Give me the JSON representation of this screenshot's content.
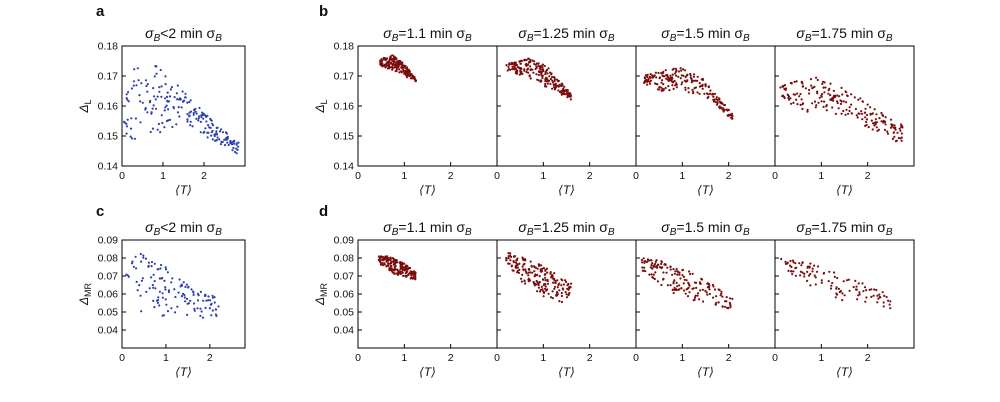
{
  "panel_letters": {
    "a": "a",
    "b": "b",
    "c": "c",
    "d": "d"
  },
  "colors": {
    "blue": "#2b3fae",
    "darkred": "#7a0d0d",
    "axis": "#000000"
  },
  "labels": {
    "x_axis": "⟨T⟩",
    "y_axis_L_symbol": "Δ",
    "y_axis_L_sub": "L",
    "y_axis_MR_symbol": "Δ",
    "y_axis_MR_sub": "MR",
    "title_lt2": {
      "pre": "σ",
      "sub": "B",
      "mid": "<2 min σ",
      "sub2": "B"
    },
    "title_1_1": {
      "pre": "σ",
      "sub": "B",
      "mid": "=1.1 min σ",
      "sub2": "B"
    },
    "title_1_25": {
      "pre": "σ",
      "sub": "B",
      "mid": "=1.25 min σ",
      "sub2": "B"
    },
    "title_1_5": {
      "pre": "σ",
      "sub": "B",
      "mid": "=1.5 min σ",
      "sub2": "B"
    },
    "title_1_75": {
      "pre": "σ",
      "sub": "B",
      "mid": "=1.75 min σ",
      "sub2": "B"
    }
  },
  "chart_data": [
    {
      "type": "scatter",
      "id": "a",
      "title_key": "title_lt2",
      "y_key": "L",
      "color_key": "blue",
      "xlim": [
        0,
        3
      ],
      "ylim": [
        0.14,
        0.18
      ],
      "xticks": [
        0,
        1,
        2
      ],
      "yticks": [
        0.14,
        0.15,
        0.16,
        0.17,
        0.18
      ],
      "gen": {
        "type": "region",
        "n": 210,
        "x": [
          0.05,
          2.85
        ],
        "top": [
          [
            0.05,
            0.168
          ],
          [
            0.5,
            0.176
          ],
          [
            1.0,
            0.172
          ],
          [
            1.5,
            0.165
          ],
          [
            2.0,
            0.158
          ],
          [
            2.8,
            0.148
          ]
        ],
        "bot": [
          [
            0.05,
            0.15
          ],
          [
            0.5,
            0.148
          ],
          [
            1.0,
            0.15
          ],
          [
            1.5,
            0.154
          ],
          [
            2.0,
            0.15
          ],
          [
            2.8,
            0.144
          ]
        ],
        "seed": 11
      }
    },
    {
      "type": "scatter",
      "id": "b1",
      "title_key": "title_1_1",
      "y_key": "L",
      "color_key": "darkred",
      "xlim": [
        0,
        3
      ],
      "ylim": [
        0.14,
        0.18
      ],
      "xticks": [
        0,
        1,
        2
      ],
      "yticks": [
        0.14,
        0.15,
        0.16,
        0.17,
        0.18
      ],
      "gen": {
        "type": "region",
        "n": 200,
        "x": [
          0.48,
          1.25
        ],
        "top": [
          [
            0.48,
            0.176
          ],
          [
            0.75,
            0.177
          ],
          [
            1.0,
            0.174
          ],
          [
            1.25,
            0.169
          ]
        ],
        "bot": [
          [
            0.48,
            0.173
          ],
          [
            0.75,
            0.172
          ],
          [
            1.0,
            0.17
          ],
          [
            1.25,
            0.168
          ]
        ],
        "seed": 21
      }
    },
    {
      "type": "scatter",
      "id": "b2",
      "title_key": "title_1_25",
      "y_key": "L",
      "color_key": "darkred",
      "xlim": [
        0,
        3
      ],
      "ylim": [
        0.14,
        0.18
      ],
      "xticks": [
        0,
        1,
        2
      ],
      "yticks": [
        0.14,
        0.15,
        0.16,
        0.17,
        0.18
      ],
      "gen": {
        "type": "region",
        "n": 220,
        "x": [
          0.2,
          1.6
        ],
        "top": [
          [
            0.2,
            0.174
          ],
          [
            0.7,
            0.176
          ],
          [
            1.1,
            0.173
          ],
          [
            1.6,
            0.164
          ]
        ],
        "bot": [
          [
            0.2,
            0.172
          ],
          [
            0.7,
            0.169
          ],
          [
            1.1,
            0.166
          ],
          [
            1.6,
            0.162
          ]
        ],
        "seed": 31
      }
    },
    {
      "type": "scatter",
      "id": "b3",
      "title_key": "title_1_5",
      "y_key": "L",
      "color_key": "darkred",
      "xlim": [
        0,
        3
      ],
      "ylim": [
        0.14,
        0.18
      ],
      "xticks": [
        0,
        1,
        2
      ],
      "yticks": [
        0.14,
        0.15,
        0.16,
        0.17,
        0.18
      ],
      "gen": {
        "type": "region",
        "n": 210,
        "x": [
          0.15,
          2.1
        ],
        "top": [
          [
            0.15,
            0.17
          ],
          [
            0.9,
            0.173
          ],
          [
            1.4,
            0.17
          ],
          [
            2.1,
            0.157
          ]
        ],
        "bot": [
          [
            0.15,
            0.167
          ],
          [
            0.7,
            0.164
          ],
          [
            1.4,
            0.164
          ],
          [
            2.1,
            0.155
          ]
        ],
        "seed": 41
      }
    },
    {
      "type": "scatter",
      "id": "b4",
      "title_key": "title_1_75",
      "y_key": "L",
      "color_key": "darkred",
      "xlim": [
        0,
        3
      ],
      "ylim": [
        0.14,
        0.18
      ],
      "xticks": [
        0,
        1,
        2
      ],
      "yticks": [
        0.14,
        0.15,
        0.16,
        0.17,
        0.18
      ],
      "gen": {
        "type": "region",
        "n": 210,
        "x": [
          0.1,
          2.75
        ],
        "top": [
          [
            0.1,
            0.167
          ],
          [
            0.8,
            0.17
          ],
          [
            1.5,
            0.166
          ],
          [
            2.1,
            0.16
          ],
          [
            2.75,
            0.154
          ]
        ],
        "bot": [
          [
            0.1,
            0.162
          ],
          [
            0.7,
            0.158
          ],
          [
            1.5,
            0.157
          ],
          [
            2.1,
            0.152
          ],
          [
            2.75,
            0.147
          ]
        ],
        "seed": 51
      }
    },
    {
      "type": "scatter",
      "id": "c",
      "title_key": "title_lt2",
      "y_key": "MR",
      "color_key": "blue",
      "xlim": [
        0,
        2.8
      ],
      "ylim": [
        0.03,
        0.09
      ],
      "xticks": [
        0,
        1,
        2
      ],
      "yticks": [
        0.04,
        0.05,
        0.06,
        0.07,
        0.08,
        0.09
      ],
      "gen": {
        "type": "region",
        "n": 130,
        "x": [
          0.05,
          2.2
        ],
        "top": [
          [
            0.05,
            0.081
          ],
          [
            0.5,
            0.083
          ],
          [
            1.0,
            0.075
          ],
          [
            1.5,
            0.066
          ],
          [
            2.2,
            0.058
          ]
        ],
        "bot": [
          [
            0.05,
            0.07
          ],
          [
            0.5,
            0.045
          ],
          [
            1.0,
            0.045
          ],
          [
            1.5,
            0.048
          ],
          [
            2.2,
            0.045
          ]
        ],
        "seed": 61
      }
    },
    {
      "type": "scatter",
      "id": "d1",
      "title_key": "title_1_1",
      "y_key": "MR",
      "color_key": "darkred",
      "xlim": [
        0,
        3
      ],
      "ylim": [
        0.03,
        0.09
      ],
      "xticks": [
        0,
        1,
        2
      ],
      "yticks": [
        0.04,
        0.05,
        0.06,
        0.07,
        0.08,
        0.09
      ],
      "gen": {
        "type": "region",
        "n": 190,
        "x": [
          0.45,
          1.25
        ],
        "top": [
          [
            0.45,
            0.082
          ],
          [
            0.7,
            0.081
          ],
          [
            1.0,
            0.077
          ],
          [
            1.25,
            0.072
          ]
        ],
        "bot": [
          [
            0.45,
            0.077
          ],
          [
            0.7,
            0.072
          ],
          [
            1.0,
            0.069
          ],
          [
            1.25,
            0.068
          ]
        ],
        "seed": 71
      }
    },
    {
      "type": "scatter",
      "id": "d2",
      "title_key": "title_1_25",
      "y_key": "MR",
      "color_key": "darkred",
      "xlim": [
        0,
        3
      ],
      "ylim": [
        0.03,
        0.09
      ],
      "xticks": [
        0,
        1,
        2
      ],
      "yticks": [
        0.04,
        0.05,
        0.06,
        0.07,
        0.08,
        0.09
      ],
      "gen": {
        "type": "region",
        "n": 190,
        "x": [
          0.2,
          1.6
        ],
        "top": [
          [
            0.2,
            0.083
          ],
          [
            0.6,
            0.081
          ],
          [
            1.1,
            0.074
          ],
          [
            1.6,
            0.066
          ]
        ],
        "bot": [
          [
            0.2,
            0.078
          ],
          [
            0.5,
            0.067
          ],
          [
            1.1,
            0.057
          ],
          [
            1.6,
            0.054
          ]
        ],
        "seed": 81
      }
    },
    {
      "type": "scatter",
      "id": "d3",
      "title_key": "title_1_5",
      "y_key": "MR",
      "color_key": "darkred",
      "xlim": [
        0,
        3
      ],
      "ylim": [
        0.03,
        0.09
      ],
      "xticks": [
        0,
        1,
        2
      ],
      "yticks": [
        0.04,
        0.05,
        0.06,
        0.07,
        0.08,
        0.09
      ],
      "gen": {
        "type": "region",
        "n": 170,
        "x": [
          0.12,
          2.1
        ],
        "top": [
          [
            0.12,
            0.081
          ],
          [
            0.8,
            0.077
          ],
          [
            1.5,
            0.068
          ],
          [
            2.1,
            0.057
          ]
        ],
        "bot": [
          [
            0.12,
            0.073
          ],
          [
            0.8,
            0.06
          ],
          [
            1.5,
            0.054
          ],
          [
            2.1,
            0.051
          ]
        ],
        "seed": 91
      }
    },
    {
      "type": "scatter",
      "id": "d4",
      "title_key": "title_1_75",
      "y_key": "MR",
      "color_key": "darkred",
      "xlim": [
        0,
        3
      ],
      "ylim": [
        0.03,
        0.09
      ],
      "xticks": [
        0,
        1,
        2
      ],
      "yticks": [
        0.04,
        0.05,
        0.06,
        0.07,
        0.08,
        0.09
      ],
      "gen": {
        "type": "region",
        "n": 110,
        "x": [
          0.1,
          2.5
        ],
        "top": [
          [
            0.1,
            0.08
          ],
          [
            0.9,
            0.077
          ],
          [
            1.6,
            0.069
          ],
          [
            2.5,
            0.06
          ]
        ],
        "bot": [
          [
            0.1,
            0.075
          ],
          [
            0.9,
            0.062
          ],
          [
            1.6,
            0.055
          ],
          [
            2.5,
            0.052
          ]
        ],
        "seed": 101
      }
    }
  ]
}
